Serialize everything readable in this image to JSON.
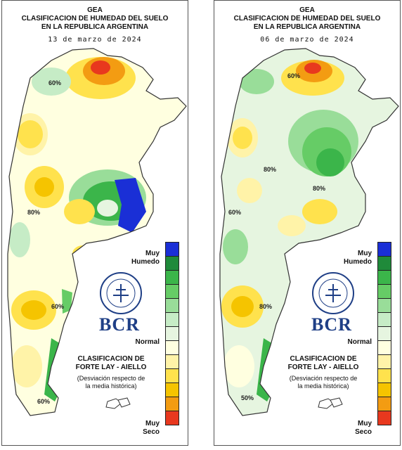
{
  "panels": [
    {
      "org": "GEA",
      "title_line1": "CLASIFICACION DE HUMEDAD DEL SUELO",
      "title_line2": "EN LA REPUBLICA ARGENTINA",
      "date": "13 de marzo de 2024",
      "contour_labels": [
        "60%",
        "80%",
        "60%",
        "60%"
      ]
    },
    {
      "org": "GEA",
      "title_line1": "CLASIFICACION DE HUMEDAD DEL SUELO",
      "title_line2": "EN LA REPUBLICA ARGENTINA",
      "date": "06 de marzo de 2024",
      "contour_labels": [
        "60%",
        "80%",
        "80%",
        "60%",
        "80%",
        "50%"
      ]
    }
  ],
  "legend": {
    "top_label_line1": "Muy",
    "top_label_line2": "Humedo",
    "mid_label": "Normal",
    "bottom_label_line1": "Muy",
    "bottom_label_line2": "Seco",
    "colors": [
      "#1a2fd6",
      "#1f8a3a",
      "#3bb54a",
      "#66cc66",
      "#99dd99",
      "#c6ecc6",
      "#e6f5e0",
      "#ffffe0",
      "#fff3a8",
      "#ffe24d",
      "#f5c400",
      "#f39c12",
      "#e8381e"
    ]
  },
  "classification": {
    "line1": "CLASIFICACION DE",
    "line2": "FORTE LAY - AIELLO",
    "line3": "(Desviación respecto de",
    "line4": "la media histórica)"
  },
  "brand": {
    "logo_text": "BCR"
  }
}
